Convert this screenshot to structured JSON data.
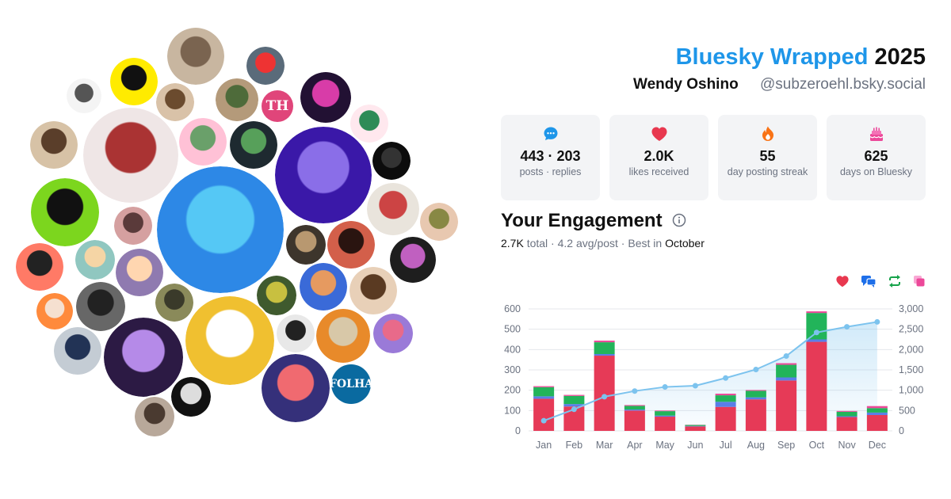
{
  "header": {
    "brand": "Bluesky Wrapped",
    "year": "2025",
    "display_name": "Wendy Oshino",
    "handle": "@subzeroehl.bsky.social"
  },
  "stats": [
    {
      "icon": "speech-bubble-icon",
      "value": "443 · 203",
      "label": "posts · replies",
      "color": "#1e96e9"
    },
    {
      "icon": "heart-icon",
      "value": "2.0K",
      "label": "likes received",
      "color": "#e8384f"
    },
    {
      "icon": "flame-icon",
      "value": "55",
      "label": "day posting streak",
      "color": "#f97316"
    },
    {
      "icon": "cake-icon",
      "value": "625",
      "label": "days on Bluesky",
      "color": "#ec4899"
    }
  ],
  "engagement": {
    "title": "Your Engagement",
    "total": "2.7K",
    "total_label": "total",
    "avg": "4.2 avg/post",
    "best_prefix": "Best in",
    "best_month": "October"
  },
  "legend": [
    {
      "icon": "heart-icon",
      "color": "#e8384f"
    },
    {
      "icon": "reply-icon",
      "color": "#1e6fe9"
    },
    {
      "icon": "repost-icon",
      "color": "#16a34a"
    },
    {
      "icon": "quote-icon",
      "color": "#ec4899"
    }
  ],
  "avatar_badges": {
    "th": "TH",
    "folha": "FOLHA"
  },
  "chart_data": {
    "type": "bar",
    "categories": [
      "Jan",
      "Feb",
      "Mar",
      "Apr",
      "May",
      "Jun",
      "Jul",
      "Aug",
      "Sep",
      "Oct",
      "Nov",
      "Dec"
    ],
    "ylim": [
      0,
      600
    ],
    "y_ticks": [
      "0",
      "100",
      "200",
      "300",
      "400",
      "500",
      "600"
    ],
    "y2lim": [
      0,
      3000
    ],
    "y2_ticks": [
      "0",
      "500",
      "1,000",
      "1,500",
      "2,000",
      "2,500",
      "3,000"
    ],
    "grid": true,
    "series": [
      {
        "color": "#e63a57",
        "values": [
          158,
          120,
          370,
          100,
          70,
          22,
          118,
          155,
          248,
          438,
          68,
          78
        ]
      },
      {
        "color": "#5a7ee8",
        "values": [
          12,
          12,
          8,
          5,
          5,
          2,
          25,
          10,
          15,
          12,
          4,
          12
        ]
      },
      {
        "color": "#22b45a",
        "values": [
          45,
          40,
          58,
          18,
          22,
          5,
          32,
          32,
          62,
          130,
          22,
          22
        ]
      },
      {
        "color": "#ec4899",
        "values": [
          5,
          5,
          8,
          4,
          3,
          1,
          8,
          4,
          8,
          8,
          4,
          10
        ]
      }
    ],
    "cumulative": {
      "color": "#7cc3ee",
      "values": [
        250,
        530,
        840,
        980,
        1080,
        1110,
        1300,
        1510,
        1840,
        2420,
        2560,
        2680
      ]
    }
  }
}
